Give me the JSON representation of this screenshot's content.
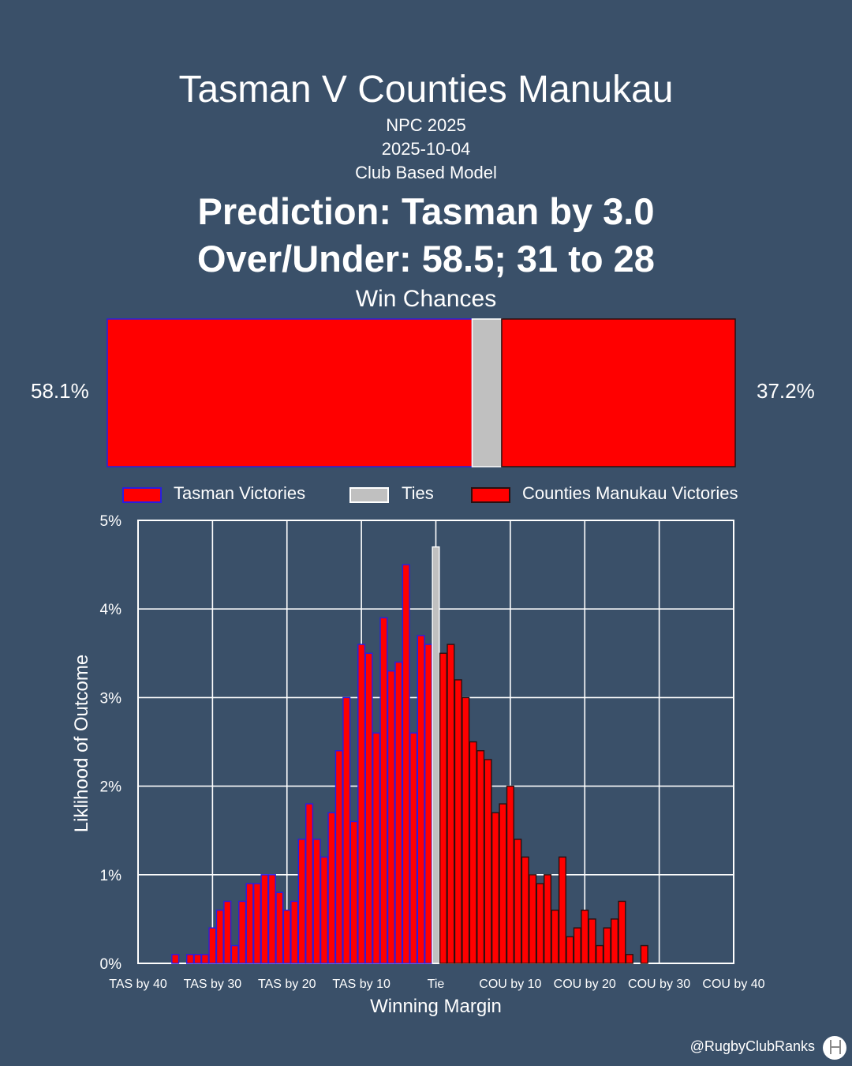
{
  "header": {
    "title": "Tasman V Counties Manukau",
    "competition": "NPC 2025",
    "date": "2025-10-04",
    "model": "Club Based Model",
    "prediction": "Prediction: Tasman by 3.0",
    "over_under": "Over/Under: 58.5; 31 to 28"
  },
  "win_chances": {
    "label": "Win Chances",
    "home_pct_label": "58.1%",
    "away_pct_label": "37.2%",
    "home": 58.1,
    "tie": 4.7,
    "away": 37.2
  },
  "legend": {
    "home": "Tasman Victories",
    "tie": "Ties",
    "away": "Counties Manukau Victories"
  },
  "colors": {
    "background": "#3a5069",
    "bar_fill": "#ff0000",
    "home_edge": "#2a1ee0",
    "away_edge": "#2a1010",
    "tie_fill": "#c0c0c0"
  },
  "chart_data": {
    "type": "bar",
    "xlabel": "Winning Margin",
    "ylabel": "Liklihood of Outcome",
    "ylim": [
      0,
      5
    ],
    "xlim": [
      -40,
      40
    ],
    "grid": true,
    "xticks": [
      {
        "value": -40,
        "label": "TAS by 40"
      },
      {
        "value": -30,
        "label": "TAS by 30"
      },
      {
        "value": -20,
        "label": "TAS by 20"
      },
      {
        "value": -10,
        "label": "TAS by 10"
      },
      {
        "value": 0,
        "label": "Tie"
      },
      {
        "value": 10,
        "label": "COU by 10"
      },
      {
        "value": 20,
        "label": "COU by 20"
      },
      {
        "value": 30,
        "label": "COU by 30"
      },
      {
        "value": 40,
        "label": "COU by 40"
      }
    ],
    "yticks": [
      {
        "value": 0,
        "label": "0%"
      },
      {
        "value": 1,
        "label": "1%"
      },
      {
        "value": 2,
        "label": "2%"
      },
      {
        "value": 3,
        "label": "3%"
      },
      {
        "value": 4,
        "label": "4%"
      },
      {
        "value": 5,
        "label": "5%"
      }
    ],
    "series": [
      {
        "name": "Tasman Victories",
        "x": [
          -35,
          -34,
          -33,
          -32,
          -31,
          -30,
          -29,
          -28,
          -27,
          -26,
          -25,
          -24,
          -23,
          -22,
          -21,
          -20,
          -19,
          -18,
          -17,
          -16,
          -15,
          -14,
          -13,
          -12,
          -11,
          -10,
          -9,
          -8,
          -7,
          -6,
          -5,
          -4,
          -3,
          -2,
          -1
        ],
        "values": [
          0.1,
          0.0,
          0.1,
          0.1,
          0.1,
          0.4,
          0.6,
          0.7,
          0.2,
          0.7,
          0.9,
          0.9,
          1.0,
          1.0,
          0.8,
          0.6,
          0.7,
          1.4,
          1.8,
          1.4,
          1.2,
          1.7,
          2.4,
          3.0,
          1.6,
          3.6,
          3.5,
          2.6,
          3.9,
          3.3,
          3.4,
          4.5,
          2.6,
          3.7,
          3.6
        ]
      },
      {
        "name": "Ties",
        "x": [
          0
        ],
        "values": [
          4.7
        ]
      },
      {
        "name": "Counties Manukau Victories",
        "x": [
          1,
          2,
          3,
          4,
          5,
          6,
          7,
          8,
          9,
          10,
          11,
          12,
          13,
          14,
          15,
          16,
          17,
          18,
          19,
          20,
          21,
          22,
          23,
          24,
          25,
          26,
          27,
          28,
          29,
          30
        ],
        "values": [
          3.5,
          3.6,
          3.2,
          3.0,
          2.5,
          2.4,
          2.3,
          1.7,
          1.8,
          2.0,
          1.4,
          1.2,
          1.0,
          0.9,
          1.0,
          0.6,
          1.2,
          0.3,
          0.4,
          0.6,
          0.5,
          0.2,
          0.4,
          0.5,
          0.7,
          0.1,
          0.0,
          0.2,
          0.0,
          0.0
        ]
      }
    ]
  },
  "footer": {
    "handle": "@RugbyClubRanks",
    "logo_icon": "goalposts-icon"
  }
}
